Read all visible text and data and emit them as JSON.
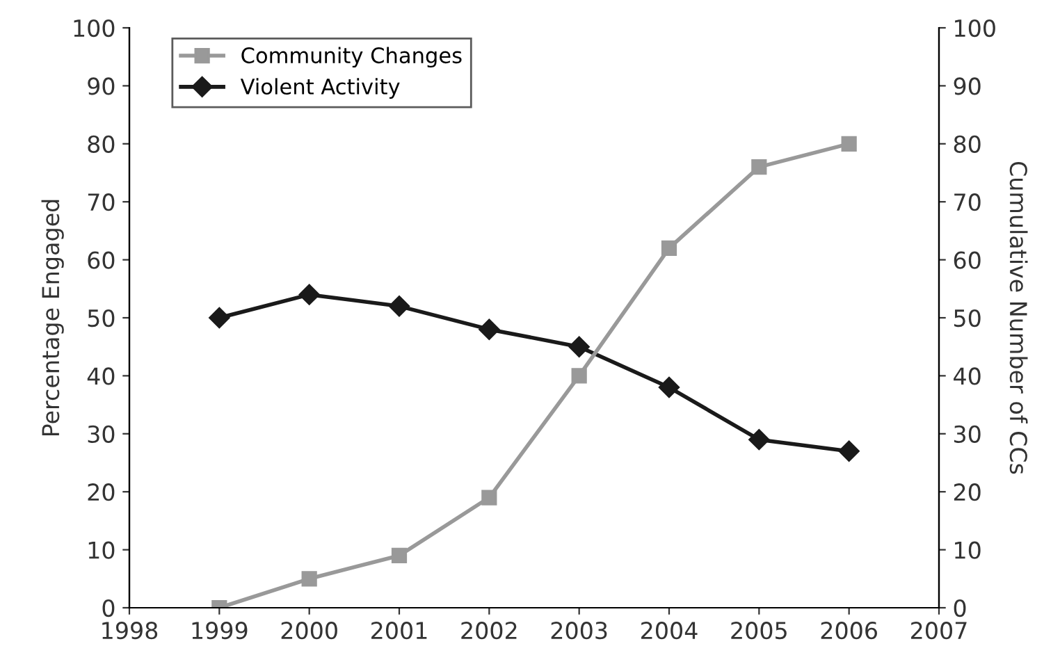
{
  "chart_data": {
    "type": "line",
    "ylabel": "Percentage Engaged",
    "y2label": "Cumulative Number of CCs",
    "x": [
      1999,
      2000,
      2001,
      2002,
      2003,
      2004,
      2005,
      2006
    ],
    "series": [
      {
        "name": "Community Changes",
        "color": "#999999",
        "marker": "square",
        "axis": "y2",
        "values": [
          0,
          5,
          9,
          19,
          40,
          62,
          76,
          80
        ]
      },
      {
        "name": "Violent Activity",
        "color": "#1a1a1a",
        "marker": "diamond",
        "values": [
          50,
          54,
          52,
          48,
          45,
          38,
          29,
          27
        ]
      }
    ],
    "xlim": [
      1998,
      2007
    ],
    "xticks": [
      1998,
      1999,
      2000,
      2001,
      2002,
      2003,
      2004,
      2005,
      2006,
      2007
    ],
    "ylim": [
      0,
      100
    ],
    "yticks": [
      0,
      10,
      20,
      30,
      40,
      50,
      60,
      70,
      80,
      90,
      100
    ],
    "y2lim": [
      0,
      100
    ],
    "y2ticks": [
      0,
      10,
      20,
      30,
      40,
      50,
      60,
      70,
      80,
      90,
      100
    ],
    "grid": false,
    "legend": "top left",
    "line_style": "solid"
  }
}
